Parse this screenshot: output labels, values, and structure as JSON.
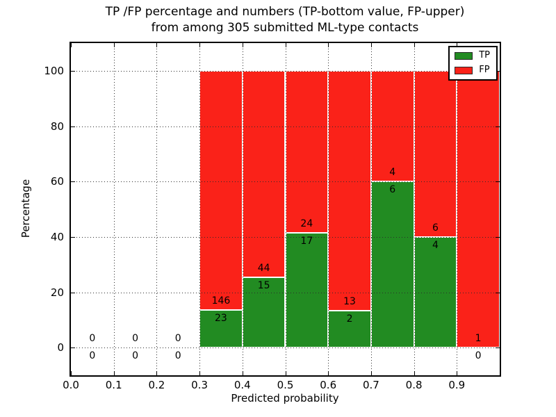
{
  "title": {
    "line1": "TP /FP percentage and numbers (TP-bottom value, FP-upper)",
    "line2": "from among 305 submitted ML-type contacts"
  },
  "axes": {
    "xlabel": "Predicted probability",
    "ylabel": "Percentage"
  },
  "legend": {
    "items": [
      {
        "label": "TP",
        "color": "#228b22"
      },
      {
        "label": "FP",
        "color": "#fa2219"
      }
    ]
  },
  "chart_data": {
    "type": "bar",
    "stacked": true,
    "title": "TP /FP percentage and numbers (TP-bottom value, FP-upper) from among 305 submitted ML-type contacts",
    "xlabel": "Predicted probability",
    "ylabel": "Percentage",
    "xlim": [
      0.0,
      1.0
    ],
    "ylim": [
      -10,
      110
    ],
    "grid": true,
    "legend_position": "upper right",
    "total_contacts": 305,
    "x_ticks": [
      "0.0",
      "0.1",
      "0.2",
      "0.3",
      "0.4",
      "0.5",
      "0.6",
      "0.7",
      "0.8",
      "0.9"
    ],
    "y_ticks": [
      0,
      20,
      40,
      60,
      80,
      100
    ],
    "series": [
      {
        "name": "TP",
        "color": "#228b22"
      },
      {
        "name": "FP",
        "color": "#fa2219"
      }
    ],
    "bins": [
      {
        "range": [
          0.0,
          0.1
        ],
        "tp": 0,
        "fp": 0,
        "tp_pct": null
      },
      {
        "range": [
          0.1,
          0.2
        ],
        "tp": 0,
        "fp": 0,
        "tp_pct": null
      },
      {
        "range": [
          0.2,
          0.3
        ],
        "tp": 0,
        "fp": 0,
        "tp_pct": null
      },
      {
        "range": [
          0.3,
          0.4
        ],
        "tp": 23,
        "fp": 146,
        "tp_pct": 13.61
      },
      {
        "range": [
          0.4,
          0.5
        ],
        "tp": 15,
        "fp": 44,
        "tp_pct": 25.42
      },
      {
        "range": [
          0.5,
          0.6
        ],
        "tp": 17,
        "fp": 24,
        "tp_pct": 41.46
      },
      {
        "range": [
          0.6,
          0.7
        ],
        "tp": 2,
        "fp": 13,
        "tp_pct": 13.33
      },
      {
        "range": [
          0.7,
          0.8
        ],
        "tp": 6,
        "fp": 4,
        "tp_pct": 60.0
      },
      {
        "range": [
          0.8,
          0.9
        ],
        "tp": 4,
        "fp": 6,
        "tp_pct": 40.0
      },
      {
        "range": [
          0.9,
          1.0
        ],
        "tp": 0,
        "fp": 1,
        "tp_pct": 0.0
      }
    ]
  }
}
